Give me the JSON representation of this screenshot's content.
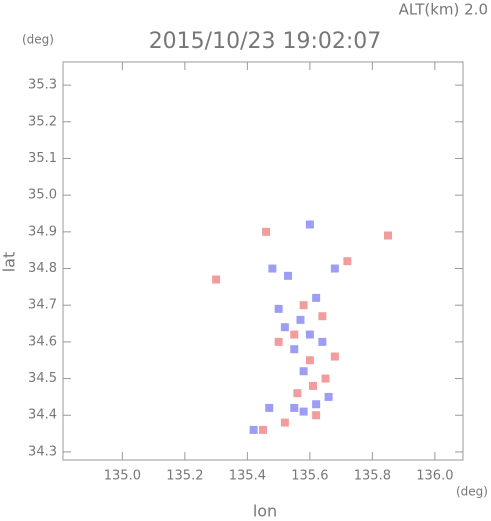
{
  "chart_data": {
    "type": "scatter",
    "title": "2015/10/23 19:02:07",
    "subtitle": "ALT(km) 2.0",
    "y_unit": "(deg)",
    "x_unit": "(deg)",
    "x_label": "lon",
    "y_label": "lat",
    "xlim": [
      134.81,
      136.09
    ],
    "ylim": [
      34.278,
      35.363
    ],
    "xticks": [
      {
        "value": 135,
        "label": "135.0"
      },
      135.2,
      135.4,
      135.6,
      135.8,
      {
        "value": 136,
        "label": "136.0"
      }
    ],
    "yticks": [
      34.3,
      34.4,
      34.5,
      34.6,
      34.7,
      34.8,
      34.9,
      {
        "value": 35,
        "label": "35.0"
      },
      35.1,
      35.2,
      35.3
    ],
    "series": [
      {
        "color": "#8c8cf2",
        "x": [
          135.47,
          135.55,
          135.58,
          135.62,
          135.55,
          135.52,
          135.57,
          135.6,
          135.62,
          135.53,
          135.6,
          135.48,
          135.42,
          135.66,
          135.58,
          135.64,
          135.5,
          135.68
        ],
        "values": [
          34.42,
          34.42,
          34.41,
          34.43,
          34.58,
          34.64,
          34.66,
          34.62,
          34.72,
          34.78,
          34.92,
          34.8,
          34.36,
          34.45,
          34.52,
          34.6,
          34.69,
          34.8
        ]
      },
      {
        "color": "#f08c8c",
        "x": [
          135.45,
          135.52,
          135.62,
          135.65,
          135.6,
          135.55,
          135.64,
          135.58,
          135.72,
          135.85,
          135.3,
          135.56,
          135.5,
          135.61,
          135.68,
          135.46
        ],
        "values": [
          34.36,
          34.38,
          34.4,
          34.5,
          34.55,
          34.62,
          34.67,
          34.7,
          34.82,
          34.89,
          34.77,
          34.46,
          34.6,
          34.48,
          34.56,
          34.9
        ]
      }
    ]
  }
}
